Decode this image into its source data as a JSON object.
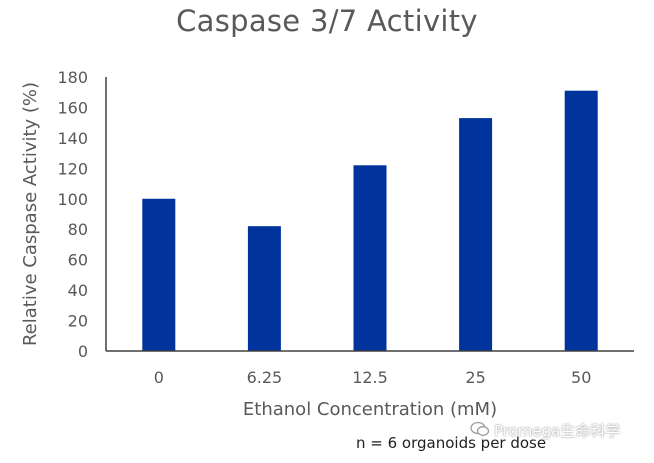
{
  "chart_data": {
    "type": "bar",
    "title": "Caspase 3/7 Activity",
    "xlabel": "Ethanol Concentration (mM)",
    "ylabel": "Relative Caspase Activity (%)",
    "categories": [
      "0",
      "6.25",
      "12.5",
      "25",
      "50"
    ],
    "values": [
      100,
      82,
      122,
      153,
      171
    ],
    "ylim": [
      0,
      180
    ],
    "yticks": [
      0,
      20,
      40,
      60,
      80,
      100,
      120,
      140,
      160,
      180
    ],
    "bar_color": "#00339C",
    "grid": false,
    "legend": "none"
  },
  "footnote": "n = 6 organoids per dose",
  "watermark": "Promega生命科学"
}
